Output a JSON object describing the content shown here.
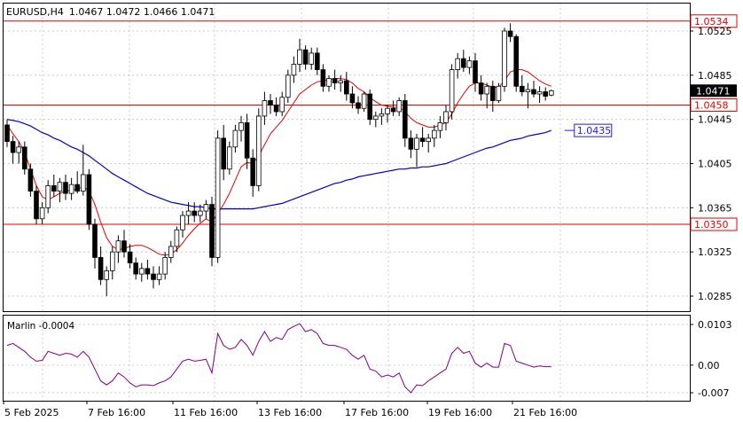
{
  "header": {
    "symbol_timeframe": "EURUSD,H4",
    "ohlc": "1.0467 1.0472 1.0466 1.0471"
  },
  "price_axis": {
    "ticks": [
      "1.0525",
      "1.0485",
      "1.0445",
      "1.0405",
      "1.0365",
      "1.0325",
      "1.0285"
    ],
    "current_price": "1.0471"
  },
  "levels": [
    {
      "name": "level-1-0534",
      "label": "1.0534",
      "value": 1.0534,
      "color": "#e60000"
    },
    {
      "name": "level-1-0458",
      "label": "1.0458",
      "value": 1.0458,
      "color": "#e60000"
    },
    {
      "name": "level-1-0350",
      "label": "1.0350",
      "value": 1.035,
      "color": "#e60000"
    }
  ],
  "ma_label": {
    "label": "1.0435",
    "value": 1.0435,
    "color": "#1a1aff"
  },
  "indicator": {
    "title": "Marlin -0.0004",
    "ticks": [
      "0.0103",
      "0.00",
      "-0.007"
    ],
    "color": "#800080"
  },
  "time_axis": [
    "5 Feb 2025",
    "7 Feb 16:00",
    "11 Feb 16:00",
    "13 Feb 16:00",
    "17 Feb 16:00",
    "19 Feb 16:00",
    "21 Feb 16:00"
  ],
  "colors": {
    "ma_fast": "#e60000",
    "ma_slow": "#0000cc",
    "candles": "#000000",
    "grid": "#c0c0c0"
  },
  "chart_data": {
    "type": "candlestick",
    "ylim": [
      1.0265,
      1.0545
    ],
    "candles": [
      [
        1.044,
        1.0445,
        1.042,
        1.0425
      ],
      [
        1.0425,
        1.043,
        1.0405,
        1.0415
      ],
      [
        1.0415,
        1.0425,
        1.0405,
        1.042
      ],
      [
        1.042,
        1.0425,
        1.0395,
        1.04
      ],
      [
        1.04,
        1.0405,
        1.0375,
        1.038
      ],
      [
        1.038,
        1.0385,
        1.035,
        1.0355
      ],
      [
        1.0355,
        1.037,
        1.035,
        1.0365
      ],
      [
        1.0365,
        1.039,
        1.036,
        1.0385
      ],
      [
        1.0385,
        1.0395,
        1.0375,
        1.038
      ],
      [
        1.038,
        1.0392,
        1.037,
        1.0388
      ],
      [
        1.0388,
        1.0395,
        1.0372,
        1.0378
      ],
      [
        1.0378,
        1.0392,
        1.0372,
        1.0386
      ],
      [
        1.0386,
        1.0398,
        1.0378,
        1.038
      ],
      [
        1.038,
        1.0422,
        1.0376,
        1.0395
      ],
      [
        1.0395,
        1.04,
        1.0345,
        1.035
      ],
      [
        1.035,
        1.0355,
        1.031,
        1.032
      ],
      [
        1.032,
        1.033,
        1.0295,
        1.03
      ],
      [
        1.03,
        1.0312,
        1.0285,
        1.0308
      ],
      [
        1.0308,
        1.033,
        1.03,
        1.0325
      ],
      [
        1.0325,
        1.034,
        1.0315,
        1.0335
      ],
      [
        1.0335,
        1.0345,
        1.032,
        1.0325
      ],
      [
        1.0325,
        1.0332,
        1.031,
        1.0315
      ],
      [
        1.0315,
        1.032,
        1.03,
        1.0305
      ],
      [
        1.0305,
        1.0315,
        1.0298,
        1.031
      ],
      [
        1.031,
        1.0318,
        1.03,
        1.0305
      ],
      [
        1.0305,
        1.0312,
        1.0292,
        1.03
      ],
      [
        1.03,
        1.0312,
        1.0295,
        1.0305
      ],
      [
        1.0305,
        1.0325,
        1.03,
        1.032
      ],
      [
        1.032,
        1.0335,
        1.0315,
        1.033
      ],
      [
        1.033,
        1.0348,
        1.0325,
        1.0345
      ],
      [
        1.0345,
        1.0362,
        1.0338,
        1.0358
      ],
      [
        1.0358,
        1.037,
        1.035,
        1.0362
      ],
      [
        1.0362,
        1.037,
        1.0352,
        1.0358
      ],
      [
        1.0358,
        1.0368,
        1.0352,
        1.0362
      ],
      [
        1.0362,
        1.0372,
        1.0355,
        1.0368
      ],
      [
        1.0368,
        1.0375,
        1.0312,
        1.032
      ],
      [
        1.032,
        1.0435,
        1.0315,
        1.0428
      ],
      [
        1.0428,
        1.044,
        1.039,
        1.04
      ],
      [
        1.04,
        1.0425,
        1.0395,
        1.042
      ],
      [
        1.042,
        1.044,
        1.0415,
        1.0435
      ],
      [
        1.0435,
        1.0448,
        1.0425,
        1.0442
      ],
      [
        1.0442,
        1.045,
        1.04,
        1.041
      ],
      [
        1.041,
        1.0418,
        1.0375,
        1.0385
      ],
      [
        1.0385,
        1.0455,
        1.038,
        1.0448
      ],
      [
        1.0448,
        1.047,
        1.044,
        1.0462
      ],
      [
        1.0462,
        1.0468,
        1.045,
        1.0458
      ],
      [
        1.0458,
        1.0465,
        1.0448,
        1.0452
      ],
      [
        1.0452,
        1.047,
        1.0448,
        1.0465
      ],
      [
        1.0465,
        1.049,
        1.046,
        1.0485
      ],
      [
        1.0485,
        1.0502,
        1.0478,
        1.0495
      ],
      [
        1.0495,
        1.0518,
        1.0488,
        1.0508
      ],
      [
        1.0508,
        1.0512,
        1.049,
        1.0495
      ],
      [
        1.0495,
        1.051,
        1.049,
        1.0505
      ],
      [
        1.0505,
        1.051,
        1.0485,
        1.049
      ],
      [
        1.049,
        1.0495,
        1.047,
        1.0475
      ],
      [
        1.0475,
        1.0485,
        1.047,
        1.0482
      ],
      [
        1.0482,
        1.049,
        1.0472,
        1.0478
      ],
      [
        1.0478,
        1.0485,
        1.047,
        1.048
      ],
      [
        1.048,
        1.0488,
        1.0462,
        1.0468
      ],
      [
        1.0468,
        1.0475,
        1.0455,
        1.046
      ],
      [
        1.046,
        1.0466,
        1.045,
        1.0455
      ],
      [
        1.0455,
        1.047,
        1.0452,
        1.0468
      ],
      [
        1.0468,
        1.0472,
        1.044,
        1.0445
      ],
      [
        1.0445,
        1.0452,
        1.0438,
        1.0448
      ],
      [
        1.0448,
        1.0455,
        1.044,
        1.045
      ],
      [
        1.045,
        1.0458,
        1.0442,
        1.0455
      ],
      [
        1.0455,
        1.0462,
        1.0448,
        1.0452
      ],
      [
        1.0452,
        1.0465,
        1.0448,
        1.0462
      ],
      [
        1.0462,
        1.0468,
        1.042,
        1.0428
      ],
      [
        1.0428,
        1.0435,
        1.041,
        1.0418
      ],
      [
        1.0418,
        1.0432,
        1.0402,
        1.0428
      ],
      [
        1.0428,
        1.0438,
        1.042,
        1.0425
      ],
      [
        1.0425,
        1.0432,
        1.0415,
        1.0428
      ],
      [
        1.0428,
        1.044,
        1.042,
        1.0435
      ],
      [
        1.0435,
        1.0448,
        1.0428,
        1.0442
      ],
      [
        1.0442,
        1.0458,
        1.0435,
        1.0452
      ],
      [
        1.0452,
        1.0495,
        1.0445,
        1.049
      ],
      [
        1.049,
        1.0505,
        1.0482,
        1.05
      ],
      [
        1.05,
        1.0508,
        1.0488,
        1.0492
      ],
      [
        1.0492,
        1.0502,
        1.0486,
        1.0498
      ],
      [
        1.0498,
        1.0505,
        1.047,
        1.0478
      ],
      [
        1.0478,
        1.0485,
        1.0462,
        1.0468
      ],
      [
        1.0468,
        1.0478,
        1.0455,
        1.0475
      ],
      [
        1.0475,
        1.048,
        1.0452,
        1.0462
      ],
      [
        1.0462,
        1.0478,
        1.046,
        1.0475
      ],
      [
        1.0475,
        1.0528,
        1.047,
        1.0525
      ],
      [
        1.0525,
        1.0532,
        1.0515,
        1.052
      ],
      [
        1.052,
        1.0522,
        1.047,
        1.0475
      ],
      [
        1.0475,
        1.0485,
        1.0466,
        1.047
      ],
      [
        1.047,
        1.0478,
        1.0455,
        1.0472
      ],
      [
        1.0472,
        1.048,
        1.0465,
        1.0468
      ],
      [
        1.0468,
        1.0475,
        1.046,
        1.047
      ],
      [
        1.047,
        1.0474,
        1.0462,
        1.0466
      ],
      [
        1.0467,
        1.0472,
        1.0466,
        1.0471
      ]
    ],
    "ma_fast": [
      1.044,
      1.0432,
      1.0425,
      1.0415,
      1.04,
      1.0385,
      1.0375,
      1.0372,
      1.0375,
      1.0378,
      1.038,
      1.0381,
      1.0382,
      1.0384,
      1.038,
      1.0368,
      1.0352,
      1.0338,
      1.033,
      1.0327,
      1.0328,
      1.033,
      1.0331,
      1.0331,
      1.0329,
      1.0326,
      1.0323,
      1.0322,
      1.0323,
      1.0327,
      1.0333,
      1.034,
      1.0346,
      1.0351,
      1.0355,
      1.0352,
      1.036,
      1.0368,
      1.0378,
      1.039,
      1.0402,
      1.0406,
      1.0405,
      1.0412,
      1.0422,
      1.0432,
      1.0438,
      1.0444,
      1.0452,
      1.046,
      1.0468,
      1.0472,
      1.0476,
      1.0479,
      1.048,
      1.0481,
      1.0482,
      1.0482,
      1.0481,
      1.0478,
      1.0473,
      1.047,
      1.0465,
      1.0461,
      1.0458,
      1.0457,
      1.0456,
      1.0456,
      1.0452,
      1.0446,
      1.0442,
      1.044,
      1.0438,
      1.0438,
      1.044,
      1.0442,
      1.045,
      1.046,
      1.0468,
      1.0475,
      1.0478,
      1.0478,
      1.0476,
      1.0474,
      1.0474,
      1.048,
      1.0488,
      1.049,
      1.049,
      1.0488,
      1.0484,
      1.048,
      1.0477,
      1.0475
    ],
    "ma_slow": [
      1.0445,
      1.0444,
      1.0443,
      1.0441,
      1.0439,
      1.0436,
      1.0433,
      1.0431,
      1.0428,
      1.0426,
      1.0423,
      1.042,
      1.0418,
      1.0415,
      1.0412,
      1.0408,
      1.0404,
      1.04,
      1.0396,
      1.0393,
      1.039,
      1.0387,
      1.0384,
      1.0381,
      1.0378,
      1.0376,
      1.0374,
      1.0372,
      1.037,
      1.0369,
      1.0368,
      1.0367,
      1.0366,
      1.0366,
      1.0365,
      1.0364,
      1.0364,
      1.0364,
      1.0364,
      1.0364,
      1.0364,
      1.0364,
      1.0364,
      1.0365,
      1.0366,
      1.0367,
      1.0368,
      1.0369,
      1.0371,
      1.0373,
      1.0375,
      1.0377,
      1.0379,
      1.0381,
      1.0383,
      1.0385,
      1.0387,
      1.0388,
      1.039,
      1.0391,
      1.0393,
      1.0394,
      1.0395,
      1.0396,
      1.0397,
      1.0398,
      1.0399,
      1.04,
      1.04,
      1.0401,
      1.0401,
      1.0402,
      1.0402,
      1.0403,
      1.0404,
      1.0405,
      1.0407,
      1.0409,
      1.0411,
      1.0413,
      1.0415,
      1.0417,
      1.0419,
      1.042,
      1.0422,
      1.0424,
      1.0426,
      1.0427,
      1.0428,
      1.043,
      1.0431,
      1.0432,
      1.0433,
      1.0435
    ],
    "marlin": [
      0.005,
      0.0055,
      0.0045,
      0.0035,
      0.002,
      0.001,
      0.0012,
      0.0035,
      0.003,
      0.0025,
      0.003,
      0.0028,
      0.002,
      0.0035,
      0.002,
      -0.001,
      -0.004,
      -0.005,
      -0.004,
      -0.002,
      -0.003,
      -0.0045,
      -0.0055,
      -0.005,
      -0.005,
      -0.0052,
      -0.0045,
      -0.004,
      -0.003,
      -0.001,
      0.001,
      0.0015,
      0.001,
      0.0012,
      0.0015,
      -0.002,
      0.008,
      0.005,
      0.004,
      0.0045,
      0.0065,
      0.005,
      0.0025,
      0.006,
      0.0085,
      0.006,
      0.007,
      0.0065,
      0.009,
      0.0098,
      0.0105,
      0.0085,
      0.009,
      0.008,
      0.0055,
      0.005,
      0.005,
      0.0045,
      0.004,
      0.0025,
      0.0015,
      0.0025,
      -0.001,
      -0.0015,
      -0.003,
      -0.0025,
      -0.003,
      -0.002,
      -0.0055,
      -0.007,
      -0.005,
      -0.0052,
      -0.004,
      -0.003,
      -0.002,
      -0.001,
      0.003,
      0.0045,
      0.003,
      0.0035,
      0.0005,
      -0.0005,
      0.0005,
      -0.0005,
      -0.0005,
      0.0055,
      0.005,
      0.001,
      0.0005,
      0.0,
      -0.0005,
      -0.0002,
      -0.0004,
      -0.0004
    ],
    "marlin_ylim": [
      -0.0095,
      0.012
    ]
  }
}
